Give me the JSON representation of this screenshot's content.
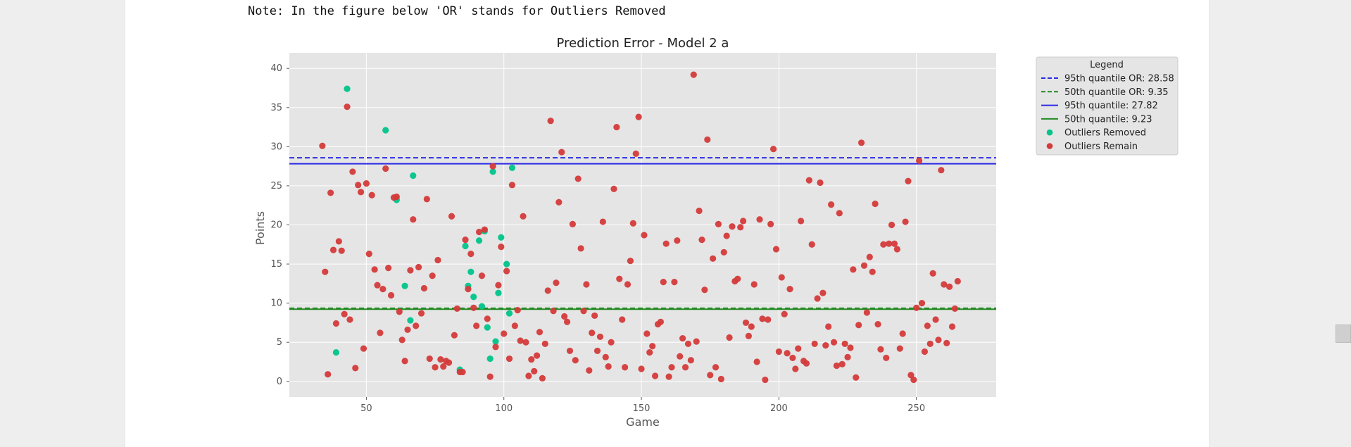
{
  "note": "Note: In the figure below 'OR' stands for Outliers Removed",
  "chart_data": {
    "type": "scatter",
    "title": "Prediction Error - Model 2 a",
    "xlabel": "Game",
    "ylabel": "Points",
    "xlim": [
      22,
      279
    ],
    "ylim": [
      -2,
      42
    ],
    "x_ticks": [
      50,
      100,
      150,
      200,
      250
    ],
    "y_ticks": [
      0,
      5,
      10,
      15,
      20,
      25,
      30,
      35,
      40
    ],
    "grid": true,
    "legend": {
      "title": "Legend",
      "placement": "outside-right-top",
      "entries": [
        "95th quantile OR: 28.58",
        "50th quantile OR: 9.35",
        "95th quantile: 27.82",
        "50th quantile: 9.23",
        "Outliers Removed",
        "Outliers Remain"
      ]
    },
    "lines": [
      {
        "name": "95th quantile OR: 28.58",
        "y": 28.58,
        "color": "#2a2ae6",
        "dash": true
      },
      {
        "name": "50th quantile OR: 9.35",
        "y": 9.35,
        "color": "#238a23",
        "dash": true
      },
      {
        "name": "95th quantile: 27.82",
        "y": 27.82,
        "color": "#2a2ae6",
        "dash": false
      },
      {
        "name": "50th quantile: 9.23",
        "y": 9.23,
        "color": "#238a23",
        "dash": false
      }
    ],
    "series": [
      {
        "name": "Outliers Removed",
        "color": "#00c48a",
        "x": [
          39,
          43,
          57,
          61,
          64,
          66,
          67,
          84,
          86,
          87,
          88,
          89,
          91,
          92,
          93,
          94,
          95,
          96,
          97,
          98,
          99,
          101,
          102,
          103
        ],
        "y": [
          3.7,
          37.4,
          32.1,
          23.2,
          12.2,
          7.8,
          26.3,
          1.5,
          17.3,
          12.2,
          14.0,
          10.8,
          18.0,
          9.6,
          19.2,
          6.9,
          2.9,
          26.8,
          5.1,
          11.3,
          18.4,
          15.0,
          8.7,
          27.3
        ]
      },
      {
        "name": "Outliers Remain",
        "color": "#d43a3a",
        "x": [
          34,
          35,
          36,
          37,
          38,
          39,
          40,
          41,
          42,
          43,
          44,
          45,
          46,
          47,
          48,
          49,
          50,
          51,
          52,
          53,
          54,
          55,
          56,
          57,
          58,
          59,
          60,
          61,
          62,
          63,
          64,
          65,
          66,
          67,
          68,
          69,
          70,
          71,
          72,
          73,
          74,
          75,
          76,
          77,
          78,
          79,
          80,
          81,
          82,
          83,
          84,
          85,
          86,
          87,
          88,
          89,
          90,
          91,
          92,
          93,
          94,
          95,
          96,
          97,
          98,
          99,
          100,
          101,
          102,
          103,
          104,
          105,
          106,
          107,
          108,
          109,
          110,
          111,
          112,
          113,
          114,
          115,
          116,
          117,
          118,
          119,
          120,
          121,
          122,
          123,
          124,
          125,
          126,
          127,
          128,
          129,
          130,
          131,
          132,
          133,
          134,
          135,
          136,
          137,
          138,
          139,
          140,
          141,
          142,
          143,
          144,
          145,
          146,
          147,
          148,
          149,
          150,
          151,
          152,
          153,
          154,
          155,
          156,
          157,
          158,
          159,
          160,
          161,
          162,
          163,
          164,
          165,
          166,
          167,
          168,
          169,
          170,
          171,
          172,
          173,
          174,
          175,
          176,
          177,
          178,
          179,
          180,
          181,
          182,
          183,
          184,
          185,
          186,
          187,
          188,
          189,
          190,
          191,
          192,
          193,
          194,
          195,
          196,
          197,
          198,
          199,
          200,
          201,
          202,
          203,
          204,
          205,
          206,
          207,
          208,
          209,
          210,
          211,
          212,
          213,
          214,
          215,
          216,
          217,
          218,
          219,
          220,
          221,
          222,
          223,
          224,
          225,
          226,
          227,
          228,
          229,
          230,
          231,
          232,
          233,
          234,
          235,
          236,
          237,
          238,
          239,
          240,
          241,
          242,
          243,
          244,
          245,
          246,
          247,
          248,
          249,
          250,
          251,
          252,
          253,
          254,
          255,
          256,
          257,
          258,
          259,
          260,
          261,
          262,
          263,
          264,
          265
        ],
        "y": [
          30.1,
          14.0,
          0.9,
          24.1,
          16.8,
          7.4,
          17.9,
          16.7,
          8.6,
          35.1,
          7.9,
          26.8,
          1.7,
          25.1,
          24.2,
          4.2,
          25.3,
          16.3,
          23.8,
          14.3,
          12.3,
          6.2,
          11.8,
          27.2,
          14.5,
          11.0,
          23.5,
          23.6,
          8.9,
          5.3,
          2.6,
          6.6,
          14.2,
          20.7,
          7.1,
          14.6,
          8.7,
          11.9,
          23.3,
          2.9,
          13.5,
          1.8,
          15.5,
          2.8,
          1.9,
          2.6,
          2.4,
          21.1,
          5.9,
          9.3,
          1.2,
          1.2,
          18.1,
          11.8,
          16.3,
          9.4,
          7.1,
          19.1,
          13.5,
          19.4,
          8.0,
          0.6,
          27.5,
          4.4,
          12.3,
          17.2,
          6.1,
          14.1,
          2.9,
          25.1,
          7.1,
          9.1,
          5.2,
          21.1,
          5.0,
          0.7,
          2.8,
          1.3,
          3.3,
          6.3,
          0.4,
          4.8,
          11.6,
          33.3,
          9.0,
          12.6,
          22.9,
          29.3,
          8.3,
          7.6,
          3.9,
          20.1,
          2.7,
          25.9,
          17.0,
          9.0,
          12.4,
          1.4,
          6.2,
          8.4,
          3.9,
          5.7,
          20.4,
          3.1,
          1.9,
          5.0,
          24.6,
          32.5,
          13.1,
          7.9,
          1.8,
          12.4,
          15.4,
          20.2,
          29.1,
          33.8,
          1.6,
          18.7,
          6.1,
          3.7,
          4.5,
          0.7,
          7.3,
          7.6,
          12.7,
          17.6,
          0.6,
          1.8,
          12.7,
          18.0,
          3.2,
          5.5,
          1.8,
          4.8,
          2.7,
          39.2,
          5.1,
          21.8,
          18.1,
          11.7,
          30.9,
          0.8,
          15.7,
          1.8,
          20.1,
          0.3,
          16.5,
          18.6,
          5.6,
          19.8,
          12.8,
          13.1,
          19.7,
          20.5,
          7.5,
          5.8,
          7.0,
          12.4,
          2.5,
          20.7,
          8.0,
          0.2,
          7.9,
          20.1,
          29.7,
          16.9,
          3.8,
          13.3,
          8.6,
          3.6,
          11.8,
          3.0,
          1.6,
          4.2,
          20.5,
          2.6,
          2.3,
          25.7,
          17.5,
          4.8,
          10.6,
          25.4,
          11.3,
          4.6,
          7.0,
          22.6,
          5.0,
          2.0,
          21.5,
          2.2,
          4.8,
          3.1,
          4.3,
          14.3,
          0.5,
          7.2,
          30.5,
          14.8,
          8.8,
          15.9,
          14.0,
          22.7,
          7.3,
          4.1,
          17.5,
          3.0,
          17.6,
          20.0,
          17.6,
          16.9,
          4.2,
          6.1,
          20.4,
          25.6,
          0.8,
          0.2,
          9.4,
          28.2,
          10.0,
          3.8,
          7.1,
          4.8,
          13.8,
          7.9,
          5.3,
          27.0,
          12.4,
          4.9,
          12.1,
          7.0,
          9.3,
          12.8
        ]
      }
    ]
  }
}
